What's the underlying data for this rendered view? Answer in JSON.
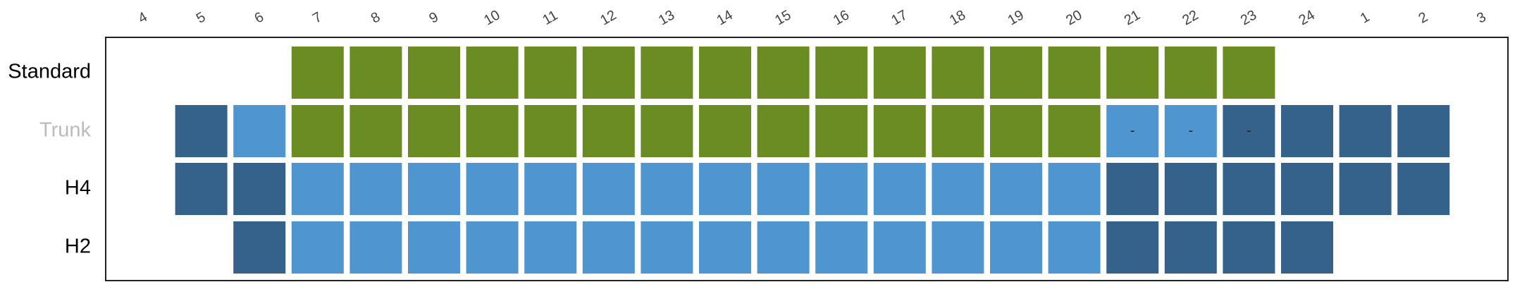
{
  "chart_data": {
    "type": "heatmap",
    "title": "",
    "xlabel": "",
    "ylabel": "",
    "x": [
      "4",
      "5",
      "6",
      "7",
      "8",
      "9",
      "10",
      "11",
      "12",
      "13",
      "14",
      "15",
      "16",
      "17",
      "18",
      "19",
      "20",
      "21",
      "22",
      "23",
      "24",
      "1",
      "2",
      "3"
    ],
    "rows": [
      {
        "label": "Standard",
        "label_color": "#000000",
        "cells": [
          "",
          "",
          "",
          "g",
          "g",
          "g",
          "g",
          "g",
          "g",
          "g",
          "g",
          "g",
          "g",
          "g",
          "g",
          "g",
          "g",
          "g",
          "g",
          "g",
          "",
          "",
          "",
          ""
        ],
        "annotations": [
          "",
          "",
          "",
          "",
          "",
          "",
          "",
          "",
          "",
          "",
          "",
          "",
          "",
          "",
          "",
          "",
          "",
          "",
          "",
          "",
          "",
          "",
          "",
          ""
        ]
      },
      {
        "label": "Trunk",
        "label_color": "#bbbbbb",
        "cells": [
          "",
          "d",
          "l",
          "g",
          "g",
          "g",
          "g",
          "g",
          "g",
          "g",
          "g",
          "g",
          "g",
          "g",
          "g",
          "g",
          "g",
          "l",
          "l",
          "d",
          "d",
          "d",
          "d",
          ""
        ],
        "annotations": [
          "",
          "",
          "",
          "",
          "",
          "",
          "",
          "",
          "",
          "",
          "",
          "",
          "",
          "",
          "",
          "",
          "",
          "-",
          "-",
          "-",
          "",
          "",
          "",
          ""
        ]
      },
      {
        "label": "H4",
        "label_color": "#000000",
        "cells": [
          "",
          "d",
          "d",
          "l",
          "l",
          "l",
          "l",
          "l",
          "l",
          "l",
          "l",
          "l",
          "l",
          "l",
          "l",
          "l",
          "l",
          "d",
          "d",
          "d",
          "d",
          "d",
          "d",
          ""
        ],
        "annotations": [
          "",
          "",
          "",
          "",
          "",
          "",
          "",
          "",
          "",
          "",
          "",
          "",
          "",
          "",
          "",
          "",
          "",
          "",
          "",
          "",
          "",
          "",
          "",
          ""
        ]
      },
      {
        "label": "H2",
        "label_color": "#000000",
        "cells": [
          "",
          "",
          "d",
          "l",
          "l",
          "l",
          "l",
          "l",
          "l",
          "l",
          "l",
          "l",
          "l",
          "l",
          "l",
          "l",
          "l",
          "d",
          "d",
          "d",
          "d",
          "",
          "",
          ""
        ],
        "annotations": [
          "",
          "",
          "",
          "",
          "",
          "",
          "",
          "",
          "",
          "",
          "",
          "",
          "",
          "",
          "",
          "",
          "",
          "",
          "",
          "",
          "",
          "",
          "",
          ""
        ]
      }
    ],
    "colors": {
      "g": "#6b8c23",
      "l": "#4f95cf",
      "d": "#35628a"
    },
    "grid": false,
    "legend": "none"
  }
}
